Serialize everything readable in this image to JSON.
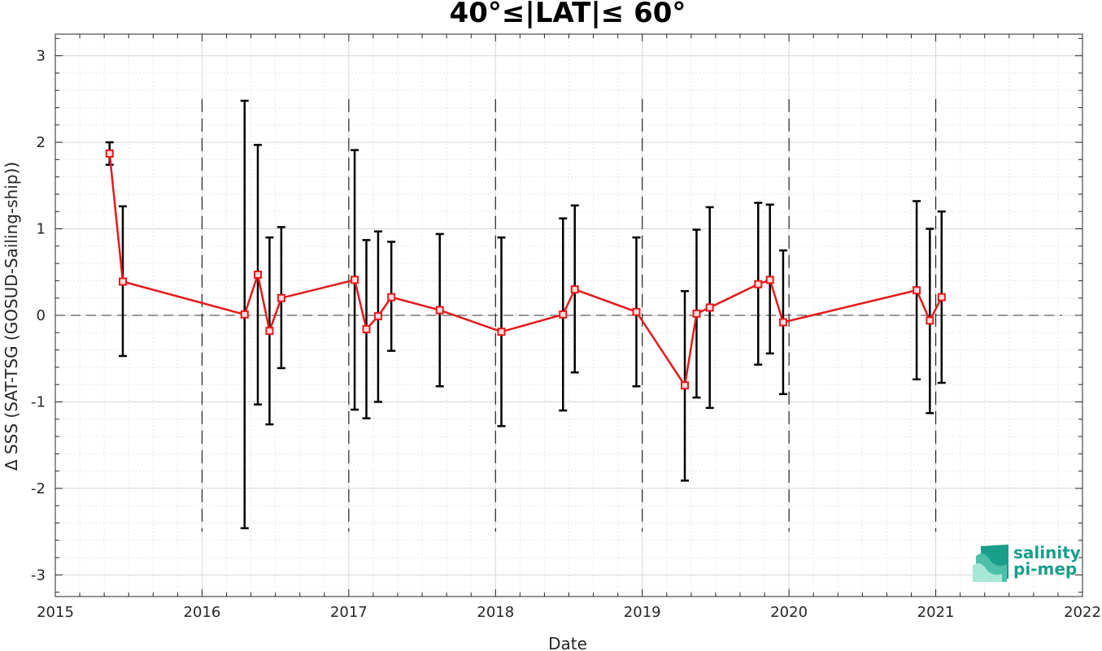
{
  "chart_data": {
    "type": "line",
    "title": "40°≤|LAT|≤ 60°",
    "xlabel": "Date",
    "ylabel": "Δ SSS (SAT-TSG (GOSUD-Sailing-ship))",
    "xlim": [
      2015,
      2022
    ],
    "ylim": [
      -3.25,
      3.25
    ],
    "x_ticks": [
      "2015",
      "2016",
      "2017",
      "2018",
      "2019",
      "2020",
      "2021",
      "2022"
    ],
    "y_ticks": [
      "-3",
      "-2",
      "-1",
      "0",
      "1",
      "2",
      "3"
    ],
    "grid": true,
    "zero_line": "dashed",
    "year_separators": "dashed",
    "series": [
      {
        "color": "#e41a1c",
        "errorbar_color": "#000000",
        "marker": "square",
        "points": [
          {
            "x": 2015.37,
            "y": 1.87,
            "lo": 1.74,
            "hi": 2.0
          },
          {
            "x": 2015.46,
            "y": 0.39,
            "lo": -0.47,
            "hi": 1.26
          },
          {
            "x": 2016.29,
            "y": 0.01,
            "lo": -2.46,
            "hi": 2.48
          },
          {
            "x": 2016.38,
            "y": 0.47,
            "lo": -1.03,
            "hi": 1.97
          },
          {
            "x": 2016.46,
            "y": -0.18,
            "lo": -1.26,
            "hi": 0.9
          },
          {
            "x": 2016.54,
            "y": 0.2,
            "lo": -0.61,
            "hi": 1.02
          },
          {
            "x": 2017.04,
            "y": 0.41,
            "lo": -1.09,
            "hi": 1.91
          },
          {
            "x": 2017.12,
            "y": -0.16,
            "lo": -1.19,
            "hi": 0.87
          },
          {
            "x": 2017.2,
            "y": -0.01,
            "lo": -1.0,
            "hi": 0.97
          },
          {
            "x": 2017.29,
            "y": 0.21,
            "lo": -0.41,
            "hi": 0.85
          },
          {
            "x": 2017.62,
            "y": 0.06,
            "lo": -0.82,
            "hi": 0.94
          },
          {
            "x": 2018.04,
            "y": -0.19,
            "lo": -1.28,
            "hi": 0.9
          },
          {
            "x": 2018.46,
            "y": 0.01,
            "lo": -1.1,
            "hi": 1.12
          },
          {
            "x": 2018.54,
            "y": 0.3,
            "lo": -0.66,
            "hi": 1.27
          },
          {
            "x": 2018.96,
            "y": 0.04,
            "lo": -0.82,
            "hi": 0.9
          },
          {
            "x": 2019.29,
            "y": -0.81,
            "lo": -1.91,
            "hi": 0.28
          },
          {
            "x": 2019.37,
            "y": 0.02,
            "lo": -0.95,
            "hi": 0.99
          },
          {
            "x": 2019.46,
            "y": 0.09,
            "lo": -1.07,
            "hi": 1.25
          },
          {
            "x": 2019.79,
            "y": 0.36,
            "lo": -0.57,
            "hi": 1.3
          },
          {
            "x": 2019.87,
            "y": 0.41,
            "lo": -0.44,
            "hi": 1.28
          },
          {
            "x": 2019.96,
            "y": -0.08,
            "lo": -0.91,
            "hi": 0.75
          },
          {
            "x": 2020.87,
            "y": 0.29,
            "lo": -0.74,
            "hi": 1.32
          },
          {
            "x": 2020.96,
            "y": -0.06,
            "lo": -1.13,
            "hi": 1.0
          },
          {
            "x": 2021.04,
            "y": 0.21,
            "lo": -0.78,
            "hi": 1.2
          }
        ]
      }
    ]
  },
  "logo": {
    "line1": "salinity",
    "line2": "pi-mep",
    "colors": [
      "#1a9e8c",
      "#7fd8c4",
      "#c7efe4"
    ]
  }
}
